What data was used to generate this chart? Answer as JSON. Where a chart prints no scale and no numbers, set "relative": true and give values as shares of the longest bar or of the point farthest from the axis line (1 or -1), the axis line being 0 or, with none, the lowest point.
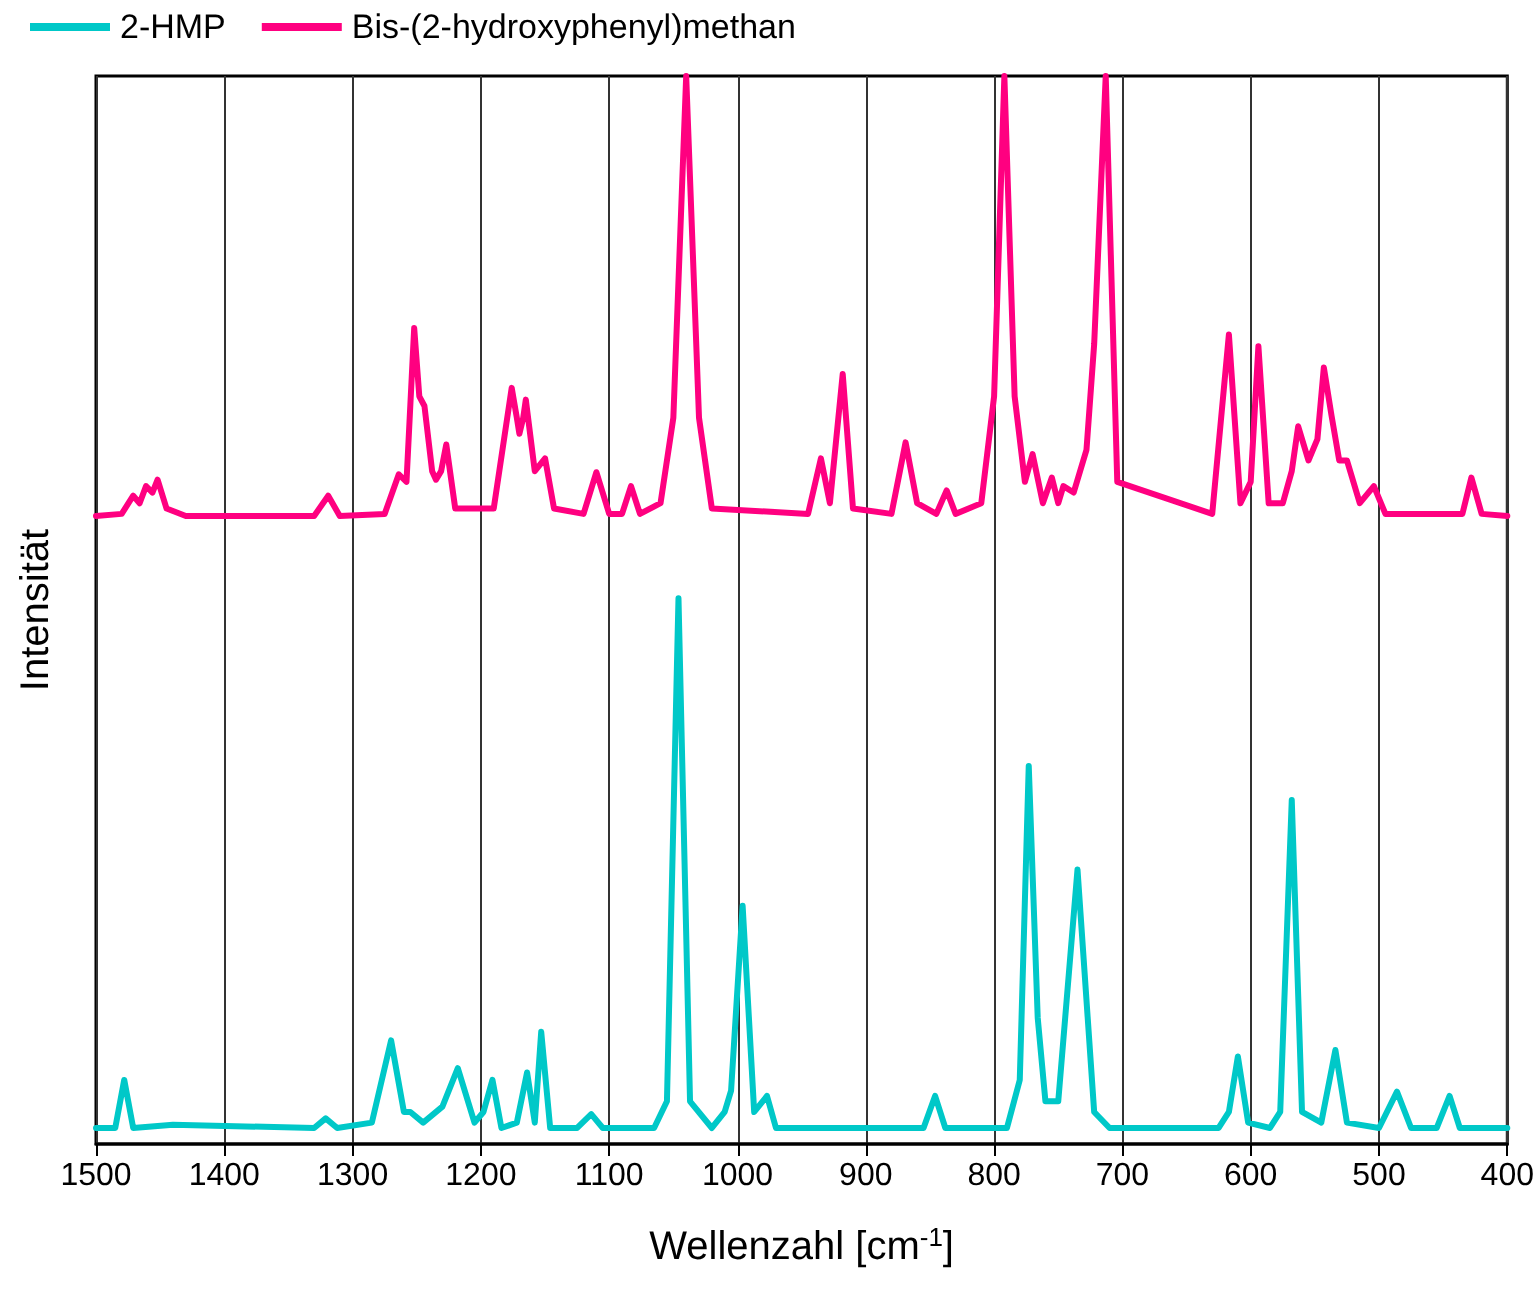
{
  "chart_data": {
    "type": "line",
    "xlabel": "Wellenzahl [cm$^{-1}$]",
    "ylabel": "Intensität",
    "relative": true,
    "xlim": [
      1500,
      400
    ],
    "xticks": [
      1500,
      1400,
      1300,
      1200,
      1100,
      1000,
      900,
      800,
      700,
      600,
      500,
      400
    ],
    "grid": "x",
    "legend": "top left",
    "marker": "none",
    "line_style": "solid",
    "series": [
      {
        "name": "2-HMP",
        "color": "#00c8c8",
        "x": [
          1500,
          1485,
          1478,
          1471,
          1440,
          1330,
          1321,
          1312,
          1285,
          1270,
          1260,
          1255,
          1245,
          1230,
          1218,
          1205,
          1198,
          1191,
          1184,
          1172,
          1164,
          1158,
          1153,
          1146,
          1125,
          1114,
          1105,
          1065,
          1055,
          1046,
          1037,
          1020,
          1010,
          1005,
          996,
          987,
          977,
          970,
          955,
          855,
          846,
          838,
          790,
          780,
          773,
          766,
          760,
          750,
          735,
          722,
          710,
          625,
          617,
          610,
          602,
          585,
          577,
          568,
          560,
          545,
          534,
          525,
          500,
          486,
          475,
          455,
          445,
          437,
          400
        ],
        "values": [
          0.015,
          0.015,
          0.06,
          0.015,
          0.018,
          0.015,
          0.024,
          0.015,
          0.02,
          0.097,
          0.03,
          0.03,
          0.02,
          0.035,
          0.071,
          0.02,
          0.03,
          0.06,
          0.015,
          0.02,
          0.067,
          0.02,
          0.105,
          0.015,
          0.015,
          0.028,
          0.015,
          0.015,
          0.04,
          0.511,
          0.04,
          0.015,
          0.03,
          0.05,
          0.223,
          0.03,
          0.045,
          0.015,
          0.015,
          0.015,
          0.045,
          0.015,
          0.015,
          0.06,
          0.354,
          0.118,
          0.04,
          0.04,
          0.257,
          0.03,
          0.015,
          0.015,
          0.03,
          0.082,
          0.02,
          0.015,
          0.03,
          0.322,
          0.03,
          0.02,
          0.088,
          0.02,
          0.015,
          0.049,
          0.015,
          0.015,
          0.045,
          0.015,
          0.015
        ]
      },
      {
        "name": "Bis-(2-hydroxyphenyl)methan",
        "color": "#ff0080",
        "x": [
          1500,
          1480,
          1471,
          1466,
          1461,
          1456,
          1452,
          1445,
          1430,
          1330,
          1319,
          1310,
          1275,
          1264,
          1258,
          1252,
          1248,
          1244,
          1238,
          1235,
          1231,
          1227,
          1220,
          1190,
          1176,
          1172,
          1170,
          1167,
          1165,
          1158,
          1150,
          1143,
          1120,
          1110,
          1100,
          1090,
          1083,
          1076,
          1060,
          1050,
          1040,
          1030,
          1020,
          945,
          935,
          928,
          918,
          910,
          880,
          869,
          860,
          845,
          837,
          830,
          810,
          800,
          792,
          784,
          776,
          770,
          762,
          755,
          750,
          746,
          738,
          728,
          722,
          713,
          704,
          630,
          617,
          608,
          600,
          594,
          586,
          575,
          568,
          563,
          555,
          548,
          543,
          537,
          531,
          525,
          515,
          504,
          495,
          435,
          428,
          420,
          400
        ],
        "values": [
          0.588,
          0.59,
          0.607,
          0.6,
          0.616,
          0.61,
          0.622,
          0.595,
          0.588,
          0.588,
          0.607,
          0.588,
          0.59,
          0.627,
          0.62,
          0.764,
          0.7,
          0.691,
          0.63,
          0.622,
          0.63,
          0.655,
          0.595,
          0.595,
          0.708,
          0.68,
          0.665,
          0.68,
          0.697,
          0.63,
          0.642,
          0.595,
          0.59,
          0.629,
          0.59,
          0.59,
          0.616,
          0.59,
          0.6,
          0.68,
          1,
          0.68,
          0.595,
          0.59,
          0.642,
          0.6,
          0.721,
          0.595,
          0.59,
          0.657,
          0.6,
          0.59,
          0.612,
          0.59,
          0.6,
          0.7,
          1,
          0.7,
          0.62,
          0.646,
          0.6,
          0.624,
          0.6,
          0.616,
          0.61,
          0.65,
          0.749,
          1,
          0.62,
          0.59,
          0.758,
          0.6,
          0.62,
          0.747,
          0.6,
          0.6,
          0.63,
          0.672,
          0.64,
          0.66,
          0.727,
          0.682,
          0.64,
          0.64,
          0.6,
          0.616,
          0.59,
          0.59,
          0.624,
          0.59,
          0.588
        ]
      }
    ]
  }
}
